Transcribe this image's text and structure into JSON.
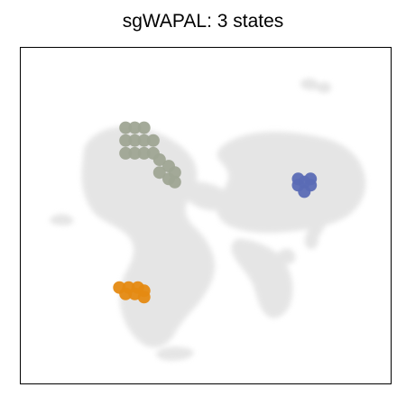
{
  "chart_data": {
    "type": "scatter",
    "title": "sgWAPAL: 3 states",
    "xlabel": "",
    "ylabel": "",
    "grid": false,
    "background_color": "#d9d9d9",
    "series": [
      {
        "color": "#9fa594",
        "points": [
          [
            -2.6,
            2.0
          ],
          [
            -2.3,
            2.0
          ],
          [
            -2.0,
            2.0
          ],
          [
            -2.6,
            1.6
          ],
          [
            -2.3,
            1.6
          ],
          [
            -2.0,
            1.6
          ],
          [
            -1.7,
            1.6
          ],
          [
            -2.6,
            1.2
          ],
          [
            -2.3,
            1.2
          ],
          [
            -2.0,
            1.2
          ],
          [
            -1.7,
            1.2
          ],
          [
            -1.5,
            1.0
          ],
          [
            -1.2,
            0.8
          ],
          [
            -1.5,
            0.6
          ],
          [
            -1.2,
            0.4
          ],
          [
            -1.0,
            0.6
          ],
          [
            -1.0,
            0.3
          ]
        ]
      },
      {
        "color": "#5b6bb5",
        "points": [
          [
            3.2,
            0.3
          ],
          [
            3.0,
            0.2
          ],
          [
            3.4,
            0.2
          ],
          [
            3.2,
            0.0
          ],
          [
            3.0,
            0.4
          ],
          [
            3.4,
            0.4
          ]
        ]
      },
      {
        "color": "#e58a12",
        "points": [
          [
            -2.8,
            -3.0
          ],
          [
            -2.5,
            -3.0
          ],
          [
            -2.2,
            -3.0
          ],
          [
            -2.0,
            -3.1
          ],
          [
            -2.6,
            -3.2
          ],
          [
            -2.3,
            -3.2
          ],
          [
            -2.0,
            -3.3
          ]
        ]
      }
    ]
  }
}
